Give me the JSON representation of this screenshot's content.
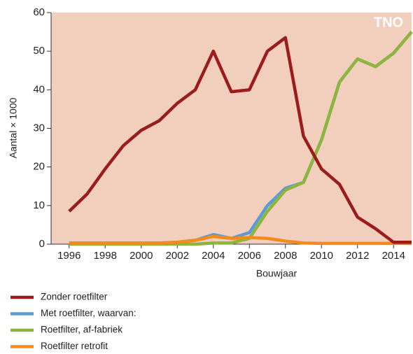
{
  "chart_data": {
    "type": "line",
    "logo": "TNO",
    "x_label": "Bouwjaar",
    "y_label": "Aantal × 1000",
    "x": [
      1996,
      1997,
      1998,
      1999,
      2000,
      2001,
      2002,
      2003,
      2004,
      2005,
      2006,
      2007,
      2008,
      2009,
      2010,
      2011,
      2012,
      2013,
      2014,
      2015
    ],
    "series": [
      {
        "name": "Zonder roetfilter",
        "color": "#9b1c1c",
        "values": [
          8.5,
          13,
          19.5,
          25.5,
          29.5,
          32,
          36.5,
          40,
          50,
          39.5,
          40,
          50,
          53.5,
          28,
          19.5,
          15.5,
          7,
          4,
          0.5,
          0.5
        ]
      },
      {
        "name": "Met roetfilter, waarvan:",
        "color": "#5b9bd5",
        "values": [
          0.3,
          0.3,
          0.3,
          0.3,
          0.3,
          0.3,
          0.5,
          1,
          2.5,
          1.5,
          3,
          10,
          14.5,
          16,
          27,
          42,
          48,
          46,
          49.5,
          55
        ]
      },
      {
        "name": "Roetfilter, af-fabriek",
        "color": "#8db43c",
        "values": [
          0,
          0,
          0,
          0,
          0,
          0,
          0,
          0,
          0.3,
          0.3,
          1.5,
          8.5,
          14,
          16,
          27,
          42,
          48,
          46,
          49.5,
          55
        ]
      },
      {
        "name": "Roetfilter retrofit",
        "color": "#f28a1e",
        "values": [
          0.3,
          0.3,
          0.3,
          0.3,
          0.3,
          0.3,
          0.5,
          1,
          2,
          1.5,
          1.7,
          1.5,
          0.8,
          0.3,
          0.2,
          0.2,
          0.2,
          0.2,
          0.2,
          0.2
        ]
      }
    ],
    "xlim": [
      1995,
      2015
    ],
    "ylim": [
      0,
      60
    ],
    "xticks": [
      1996,
      1998,
      2000,
      2002,
      2004,
      2006,
      2008,
      2010,
      2012,
      2014
    ],
    "yticks": [
      0,
      10,
      20,
      30,
      40,
      50,
      60
    ],
    "legend": "bottom"
  }
}
